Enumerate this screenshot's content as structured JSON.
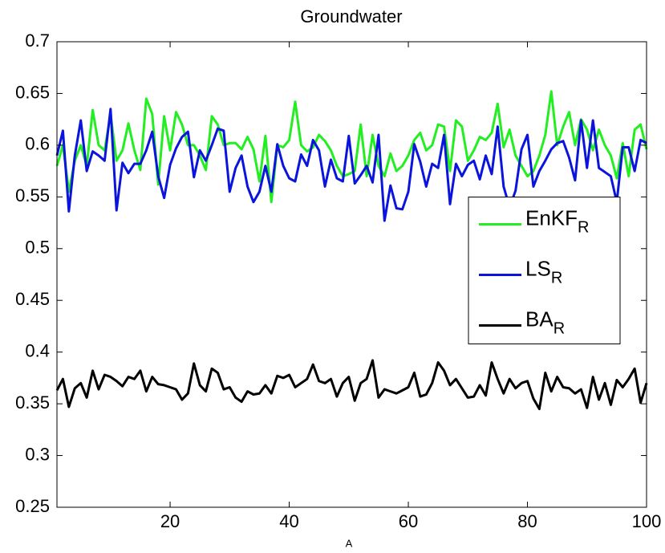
{
  "chart_data": {
    "type": "line",
    "title": "Groundwater",
    "x_label": "A",
    "x": [
      1,
      2,
      3,
      4,
      5,
      6,
      7,
      8,
      9,
      10,
      11,
      12,
      13,
      14,
      15,
      16,
      17,
      18,
      19,
      20,
      21,
      22,
      23,
      24,
      25,
      26,
      27,
      28,
      29,
      30,
      31,
      32,
      33,
      34,
      35,
      36,
      37,
      38,
      39,
      40,
      41,
      42,
      43,
      44,
      45,
      46,
      47,
      48,
      49,
      50,
      51,
      52,
      53,
      54,
      55,
      56,
      57,
      58,
      59,
      60,
      61,
      62,
      63,
      64,
      65,
      66,
      67,
      68,
      69,
      70,
      71,
      72,
      73,
      74,
      75,
      76,
      77,
      78,
      79,
      80,
      81,
      82,
      83,
      84,
      85,
      86,
      87,
      88,
      89,
      90,
      91,
      92,
      93,
      94,
      95,
      96,
      97,
      98,
      99,
      100
    ],
    "series": [
      {
        "name": "EnKF",
        "subscript": "R",
        "color": "#22ee22",
        "values": [
          0.58,
          0.6,
          0.555,
          0.585,
          0.6,
          0.58,
          0.634,
          0.6,
          0.595,
          0.63,
          0.585,
          0.595,
          0.621,
          0.595,
          0.576,
          0.645,
          0.63,
          0.562,
          0.628,
          0.595,
          0.632,
          0.62,
          0.6,
          0.6,
          0.59,
          0.576,
          0.628,
          0.62,
          0.6,
          0.602,
          0.602,
          0.596,
          0.608,
          0.596,
          0.565,
          0.609,
          0.545,
          0.6,
          0.598,
          0.605,
          0.642,
          0.6,
          0.594,
          0.598,
          0.61,
          0.604,
          0.595,
          0.58,
          0.57,
          0.572,
          0.575,
          0.62,
          0.57,
          0.61,
          0.58,
          0.57,
          0.592,
          0.575,
          0.58,
          0.59,
          0.605,
          0.612,
          0.595,
          0.6,
          0.62,
          0.618,
          0.575,
          0.624,
          0.618,
          0.585,
          0.595,
          0.608,
          0.605,
          0.612,
          0.64,
          0.598,
          0.615,
          0.59,
          0.58,
          0.57,
          0.575,
          0.59,
          0.61,
          0.652,
          0.6,
          0.618,
          0.632,
          0.6,
          0.625,
          0.615,
          0.595,
          0.615,
          0.6,
          0.59,
          0.568,
          0.602,
          0.57,
          0.615,
          0.62,
          0.596
        ]
      },
      {
        "name": "LS",
        "subscript": "R",
        "color": "#0a14dc",
        "values": [
          0.59,
          0.614,
          0.536,
          0.59,
          0.624,
          0.575,
          0.594,
          0.59,
          0.585,
          0.635,
          0.537,
          0.583,
          0.573,
          0.582,
          0.582,
          0.595,
          0.613,
          0.57,
          0.549,
          0.581,
          0.597,
          0.608,
          0.613,
          0.569,
          0.595,
          0.585,
          0.6,
          0.616,
          0.614,
          0.555,
          0.578,
          0.59,
          0.56,
          0.545,
          0.555,
          0.58,
          0.555,
          0.601,
          0.58,
          0.568,
          0.565,
          0.591,
          0.58,
          0.605,
          0.595,
          0.56,
          0.586,
          0.568,
          0.565,
          0.609,
          0.563,
          0.571,
          0.58,
          0.564,
          0.61,
          0.527,
          0.561,
          0.539,
          0.538,
          0.555,
          0.601,
          0.584,
          0.56,
          0.582,
          0.578,
          0.61,
          0.543,
          0.582,
          0.57,
          0.581,
          0.585,
          0.567,
          0.59,
          0.572,
          0.618,
          0.56,
          0.54,
          0.556,
          0.596,
          0.61,
          0.56,
          0.575,
          0.585,
          0.596,
          0.602,
          0.604,
          0.588,
          0.566,
          0.624,
          0.578,
          0.624,
          0.578,
          0.574,
          0.57,
          0.545,
          0.598,
          0.598,
          0.575,
          0.605,
          0.602
        ]
      },
      {
        "name": "BA",
        "subscript": "R",
        "color": "#000000",
        "values": [
          0.363,
          0.374,
          0.347,
          0.365,
          0.37,
          0.356,
          0.382,
          0.364,
          0.378,
          0.376,
          0.372,
          0.367,
          0.376,
          0.374,
          0.382,
          0.362,
          0.376,
          0.369,
          0.368,
          0.366,
          0.364,
          0.354,
          0.36,
          0.389,
          0.368,
          0.362,
          0.384,
          0.38,
          0.364,
          0.366,
          0.356,
          0.352,
          0.362,
          0.359,
          0.36,
          0.368,
          0.36,
          0.377,
          0.375,
          0.378,
          0.366,
          0.37,
          0.374,
          0.388,
          0.372,
          0.37,
          0.374,
          0.357,
          0.37,
          0.376,
          0.353,
          0.37,
          0.374,
          0.392,
          0.356,
          0.364,
          0.362,
          0.36,
          0.363,
          0.366,
          0.38,
          0.357,
          0.359,
          0.37,
          0.39,
          0.382,
          0.368,
          0.374,
          0.365,
          0.356,
          0.357,
          0.368,
          0.358,
          0.39,
          0.374,
          0.36,
          0.374,
          0.365,
          0.37,
          0.372,
          0.355,
          0.345,
          0.38,
          0.362,
          0.376,
          0.366,
          0.365,
          0.36,
          0.364,
          0.346,
          0.376,
          0.354,
          0.37,
          0.349,
          0.373,
          0.366,
          0.374,
          0.384,
          0.351,
          0.37
        ]
      }
    ],
    "xlim": [
      1,
      100
    ],
    "xticks": [
      20,
      40,
      60,
      80,
      100
    ],
    "ylim": [
      0.25,
      0.7
    ],
    "yticks": [
      0.25,
      0.3,
      0.35,
      0.4,
      0.45,
      0.5,
      0.55,
      0.6,
      0.65,
      0.7
    ],
    "grid": false,
    "legend_loc": "right"
  }
}
